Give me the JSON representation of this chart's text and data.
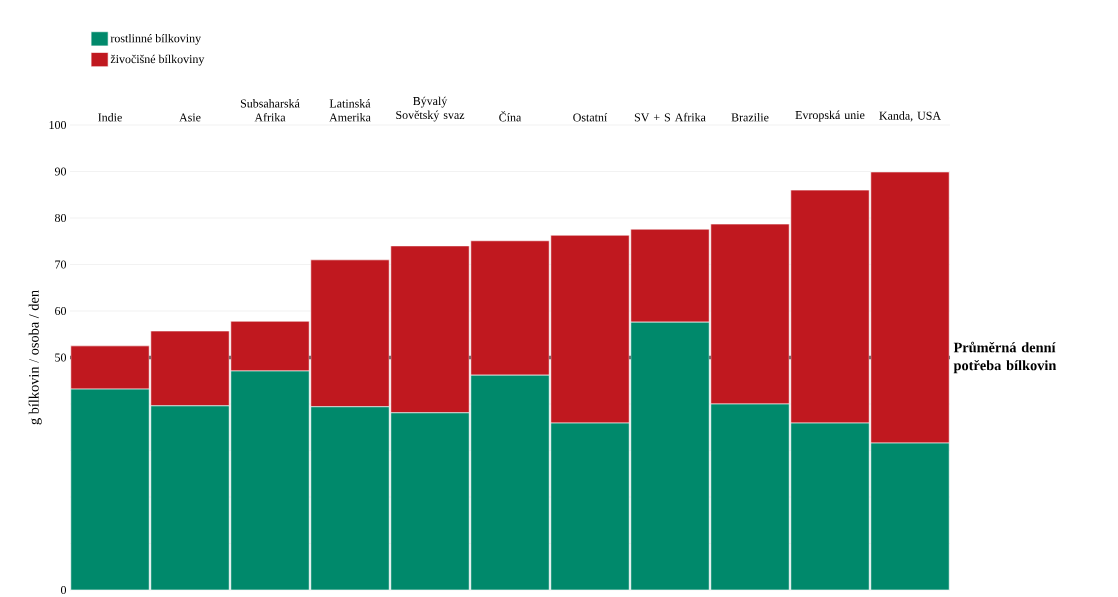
{
  "chart_data": {
    "type": "bar",
    "stacked": true,
    "ylabel": "g bílkovin / osoba / den",
    "categories": [
      "Indie",
      "Asie",
      "Subsaharská Afrika",
      "Latinská Amerika",
      "Bývalý Sovětský svaz",
      "Čína",
      "Ostatní",
      "SV + S Afrika",
      "Brazilie",
      "Evropská unie",
      "Kanda, USA"
    ],
    "series": [
      {
        "name": "rostlinné bílkoviny",
        "color": "#00896b",
        "values": [
          43.2,
          39.6,
          47.1,
          39.4,
          38.1,
          46.2,
          35.9,
          57.6,
          40.0,
          35.9,
          31.6
        ]
      },
      {
        "name": "živočišné bílkoviny",
        "color": "#c0181f",
        "values": [
          9.3,
          16.1,
          10.7,
          31.6,
          35.9,
          28.9,
          40.4,
          20.0,
          38.7,
          50.1,
          58.3
        ]
      }
    ],
    "ylim": [
      0,
      100
    ],
    "yticks": [
      0,
      {
        "value": 10,
        "label": null
      },
      {
        "value": 20,
        "label": null
      },
      {
        "value": 30,
        "label": null
      },
      {
        "value": 40,
        "label": null
      },
      50,
      60,
      70,
      80,
      90,
      100
    ],
    "grid": "y",
    "legend": "top left",
    "ref_lines": [
      {
        "axis": "y",
        "value": 50,
        "label": "Průměrná denní potřeba bílkovin",
        "color": "#000000"
      }
    ]
  }
}
